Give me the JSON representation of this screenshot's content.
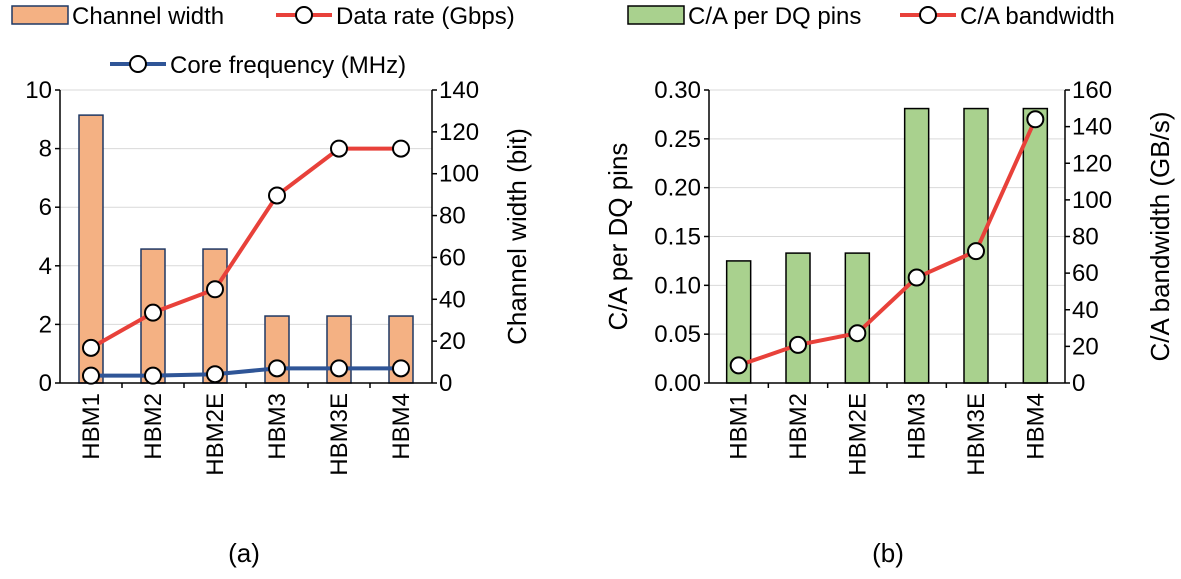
{
  "chart_data": [
    {
      "type": "bar",
      "title": "",
      "caption": "(a)",
      "categories": [
        "HBM1",
        "HBM2",
        "HBM2E",
        "HBM3",
        "HBM3E",
        "HBM4"
      ],
      "legend": [
        "Channel width",
        "Data rate (Gbps)",
        "Core frequency (MHz)"
      ],
      "left_axis": {
        "label": "",
        "range": [
          0,
          10
        ],
        "ticks": [
          "0",
          "2",
          "4",
          "6",
          "8",
          "10"
        ]
      },
      "right_axis": {
        "label": "Channel width (bit)",
        "range": [
          0,
          140
        ],
        "ticks": [
          "0",
          "20",
          "40",
          "60",
          "80",
          "100",
          "120",
          "140"
        ]
      },
      "series": [
        {
          "name": "Channel width",
          "kind": "bar",
          "axis": "right",
          "color": "#F4B183",
          "edge": "#1F3864",
          "values": [
            128,
            64,
            64,
            32,
            32,
            32
          ]
        },
        {
          "name": "Data rate (Gbps)",
          "kind": "line",
          "axis": "left",
          "color": "#E8413A",
          "values": [
            1.2,
            2.4,
            3.2,
            6.4,
            8.0,
            8.0
          ]
        },
        {
          "name": "Core frequency (MHz)",
          "kind": "line",
          "axis": "left",
          "color": "#2F5597",
          "values": [
            0.25,
            0.25,
            0.3,
            0.5,
            0.5,
            0.5
          ]
        }
      ]
    },
    {
      "type": "bar",
      "title": "",
      "caption": "(b)",
      "categories": [
        "HBM1",
        "HBM2",
        "HBM2E",
        "HBM3",
        "HBM3E",
        "HBM4"
      ],
      "legend": [
        "C/A per DQ pins",
        "C/A bandwidth"
      ],
      "left_axis": {
        "label": "C/A per DQ pins",
        "range": [
          0,
          0.3
        ],
        "ticks": [
          "0.00",
          "0.05",
          "0.10",
          "0.15",
          "0.20",
          "0.25",
          "0.30"
        ]
      },
      "right_axis": {
        "label": "C/A bandwidth (GB/s)",
        "range": [
          0,
          160
        ],
        "ticks": [
          "0",
          "20",
          "40",
          "60",
          "80",
          "100",
          "120",
          "140",
          "160"
        ]
      },
      "series": [
        {
          "name": "C/A per DQ pins",
          "kind": "bar",
          "axis": "left",
          "color": "#A9D18E",
          "edge": "#000000",
          "values": [
            0.125,
            0.133,
            0.133,
            0.281,
            0.281,
            0.281
          ]
        },
        {
          "name": "C/A bandwidth",
          "kind": "line",
          "axis": "right",
          "color": "#E8413A",
          "values": [
            9.6,
            20.8,
            27.2,
            57.6,
            72.0,
            144.0
          ]
        }
      ]
    }
  ]
}
